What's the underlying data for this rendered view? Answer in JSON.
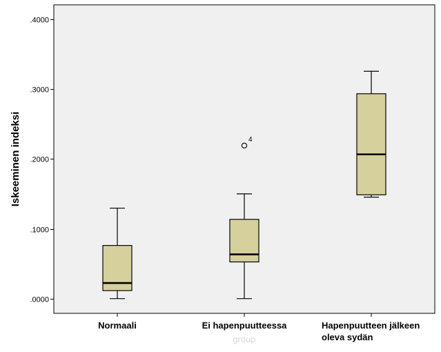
{
  "chart_data": {
    "type": "box",
    "xlabel": "group",
    "ylabel": "Iskeeminen indeksi",
    "ylim": [
      -0.0211,
      0.4211
    ],
    "yticks": [
      0.0,
      0.1,
      0.2,
      0.3,
      0.4
    ],
    "ytick_labels": [
      ".0000",
      ".1000",
      ".2000",
      ".3000",
      ".4000"
    ],
    "grid": false,
    "colors": {
      "box_fill": "#d6d19c",
      "plot_bg": "#f0f0f0"
    },
    "categories": [
      {
        "label": "Normaali",
        "label_lines": [
          "Normaali"
        ],
        "min": 0.0,
        "q1": 0.0115,
        "median": 0.0224,
        "q3": 0.0762,
        "max": 0.1297,
        "outliers": []
      },
      {
        "label": "Ei hapenpuutteessa",
        "label_lines": [
          "Ei hapenpuutteessa"
        ],
        "min": 0.0,
        "q1": 0.0526,
        "median": 0.0634,
        "q3": 0.1136,
        "max": 0.1502,
        "outliers": [
          {
            "value": 0.2194,
            "label": "4"
          }
        ]
      },
      {
        "label": "Hapenpuutteen jälkeen oleva sydän",
        "label_lines": [
          "Hapenpuutteen jälkeen",
          "oleva sydän"
        ],
        "min": 0.1455,
        "q1": 0.1488,
        "median": 0.2068,
        "q3": 0.2937,
        "max": 0.3259,
        "outliers": []
      }
    ]
  }
}
